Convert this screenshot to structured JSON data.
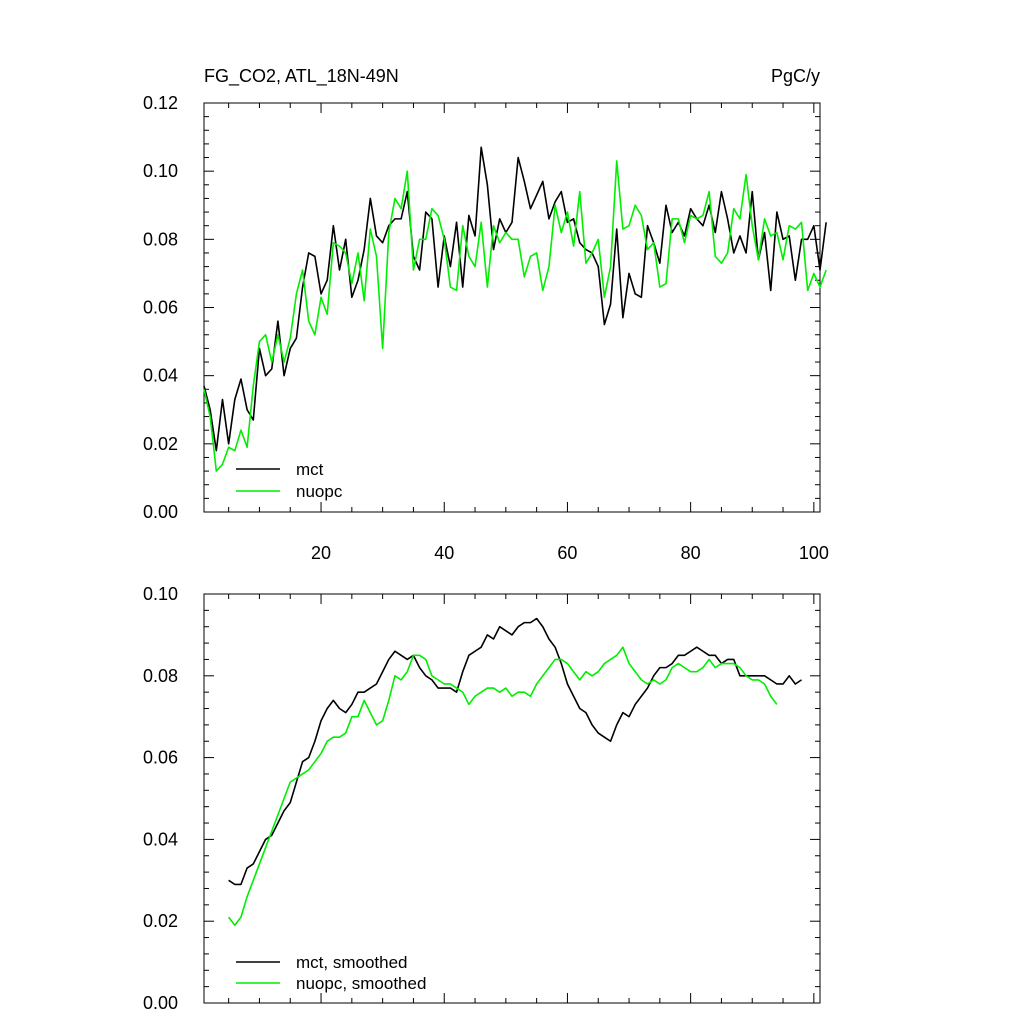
{
  "header": {
    "left_title": "FG_CO2, ATL_18N-49N",
    "right_title": "PgC/y"
  },
  "colors": {
    "mct": "#000000",
    "nuopc": "#00ee00"
  },
  "chart_data": [
    {
      "type": "line",
      "title": "FG_CO2, ATL_18N-49N",
      "units": "PgC/y",
      "xlim": [
        1,
        101
      ],
      "ylim": [
        0,
        0.12
      ],
      "x_ticks": [
        20,
        40,
        60,
        80,
        100
      ],
      "y_ticks": [
        0.0,
        0.02,
        0.04,
        0.06,
        0.08,
        0.1,
        0.12
      ],
      "x_tick_labels": [
        "20",
        "40",
        "60",
        "80",
        "100"
      ],
      "y_tick_labels": [
        "0.00",
        "0.02",
        "0.04",
        "0.06",
        "0.08",
        "0.10",
        "0.12"
      ],
      "grid": false,
      "legend_position": "bottom-left",
      "x_start": 1,
      "series": [
        {
          "name": "mct",
          "color": "#000000",
          "values": [
            0.037,
            0.03,
            0.018,
            0.033,
            0.02,
            0.033,
            0.039,
            0.03,
            0.027,
            0.048,
            0.04,
            0.042,
            0.056,
            0.04,
            0.048,
            0.051,
            0.066,
            0.076,
            0.075,
            0.064,
            0.068,
            0.084,
            0.071,
            0.08,
            0.063,
            0.068,
            0.077,
            0.092,
            0.081,
            0.079,
            0.084,
            0.086,
            0.086,
            0.094,
            0.075,
            0.071,
            0.088,
            0.086,
            0.066,
            0.081,
            0.072,
            0.085,
            0.066,
            0.087,
            0.081,
            0.107,
            0.096,
            0.077,
            0.086,
            0.082,
            0.085,
            0.104,
            0.097,
            0.089,
            0.093,
            0.097,
            0.086,
            0.091,
            0.094,
            0.085,
            0.086,
            0.079,
            0.077,
            0.076,
            0.072,
            0.055,
            0.061,
            0.083,
            0.057,
            0.07,
            0.064,
            0.063,
            0.084,
            0.079,
            0.073,
            0.09,
            0.082,
            0.085,
            0.081,
            0.089,
            0.086,
            0.084,
            0.09,
            0.082,
            0.094,
            0.086,
            0.076,
            0.081,
            0.076,
            0.094,
            0.074,
            0.082,
            0.065,
            0.088,
            0.08,
            0.081,
            0.068,
            0.08,
            0.08,
            0.084,
            0.071,
            0.085
          ]
        },
        {
          "name": "nuopc",
          "color": "#00ee00",
          "values": [
            0.036,
            0.028,
            0.012,
            0.014,
            0.019,
            0.018,
            0.024,
            0.019,
            0.037,
            0.05,
            0.052,
            0.044,
            0.052,
            0.044,
            0.051,
            0.064,
            0.071,
            0.056,
            0.052,
            0.063,
            0.058,
            0.079,
            0.078,
            0.076,
            0.067,
            0.076,
            0.062,
            0.083,
            0.075,
            0.048,
            0.082,
            0.092,
            0.089,
            0.1,
            0.071,
            0.08,
            0.08,
            0.089,
            0.087,
            0.08,
            0.066,
            0.065,
            0.084,
            0.075,
            0.072,
            0.085,
            0.066,
            0.084,
            0.079,
            0.082,
            0.08,
            0.08,
            0.069,
            0.075,
            0.076,
            0.065,
            0.072,
            0.09,
            0.082,
            0.088,
            0.078,
            0.094,
            0.073,
            0.076,
            0.08,
            0.063,
            0.072,
            0.103,
            0.083,
            0.084,
            0.09,
            0.087,
            0.077,
            0.079,
            0.066,
            0.067,
            0.086,
            0.086,
            0.079,
            0.087,
            0.086,
            0.087,
            0.094,
            0.075,
            0.073,
            0.076,
            0.089,
            0.086,
            0.099,
            0.084,
            0.074,
            0.086,
            0.081,
            0.082,
            0.074,
            0.084,
            0.083,
            0.085,
            0.065,
            0.07,
            0.066,
            0.071
          ]
        }
      ],
      "legend": [
        {
          "label": "mct",
          "color": "#000000"
        },
        {
          "label": "nuopc",
          "color": "#00ee00"
        }
      ]
    },
    {
      "type": "line",
      "xlim": [
        1,
        101
      ],
      "ylim": [
        0,
        0.1
      ],
      "x_ticks": [
        20,
        40,
        60,
        80,
        100
      ],
      "y_ticks": [
        0.0,
        0.02,
        0.04,
        0.06,
        0.08,
        0.1
      ],
      "y_tick_labels": [
        "0.00",
        "0.02",
        "0.04",
        "0.06",
        "0.08",
        "0.10"
      ],
      "grid": false,
      "legend_position": "bottom-left",
      "x_start": 5,
      "series": [
        {
          "name": "mct, smoothed",
          "color": "#000000",
          "values": [
            0.03,
            0.029,
            0.029,
            0.033,
            0.034,
            0.037,
            0.04,
            0.041,
            0.044,
            0.047,
            0.049,
            0.054,
            0.059,
            0.06,
            0.064,
            0.069,
            0.072,
            0.074,
            0.072,
            0.071,
            0.073,
            0.076,
            0.076,
            0.077,
            0.078,
            0.081,
            0.084,
            0.086,
            0.085,
            0.084,
            0.085,
            0.082,
            0.08,
            0.079,
            0.077,
            0.077,
            0.077,
            0.076,
            0.081,
            0.085,
            0.086,
            0.087,
            0.09,
            0.089,
            0.092,
            0.091,
            0.09,
            0.092,
            0.093,
            0.093,
            0.094,
            0.092,
            0.089,
            0.087,
            0.083,
            0.078,
            0.075,
            0.072,
            0.071,
            0.068,
            0.066,
            0.065,
            0.064,
            0.068,
            0.071,
            0.07,
            0.073,
            0.075,
            0.077,
            0.08,
            0.082,
            0.082,
            0.083,
            0.085,
            0.085,
            0.086,
            0.087,
            0.086,
            0.085,
            0.085,
            0.083,
            0.084,
            0.084,
            0.08,
            0.08,
            0.08,
            0.08,
            0.08,
            0.079,
            0.078,
            0.078,
            0.08,
            0.078,
            0.079
          ]
        },
        {
          "name": "nuopc, smoothed",
          "color": "#00ee00",
          "values": [
            0.021,
            0.019,
            0.021,
            0.026,
            0.03,
            0.034,
            0.038,
            0.042,
            0.046,
            0.05,
            0.054,
            0.055,
            0.056,
            0.057,
            0.059,
            0.061,
            0.064,
            0.065,
            0.065,
            0.066,
            0.07,
            0.07,
            0.074,
            0.071,
            0.068,
            0.069,
            0.074,
            0.08,
            0.079,
            0.081,
            0.085,
            0.085,
            0.084,
            0.08,
            0.079,
            0.078,
            0.078,
            0.077,
            0.076,
            0.073,
            0.075,
            0.076,
            0.077,
            0.077,
            0.076,
            0.077,
            0.075,
            0.076,
            0.076,
            0.075,
            0.078,
            0.08,
            0.082,
            0.084,
            0.084,
            0.083,
            0.081,
            0.079,
            0.081,
            0.08,
            0.081,
            0.083,
            0.084,
            0.085,
            0.087,
            0.083,
            0.081,
            0.079,
            0.078,
            0.079,
            0.078,
            0.079,
            0.082,
            0.083,
            0.082,
            0.081,
            0.081,
            0.082,
            0.084,
            0.082,
            0.083,
            0.083,
            0.083,
            0.082,
            0.08,
            0.079,
            0.079,
            0.078,
            0.075,
            0.073
          ]
        }
      ],
      "legend": [
        {
          "label": "mct, smoothed",
          "color": "#000000"
        },
        {
          "label": "nuopc, smoothed",
          "color": "#00ee00"
        }
      ]
    }
  ]
}
